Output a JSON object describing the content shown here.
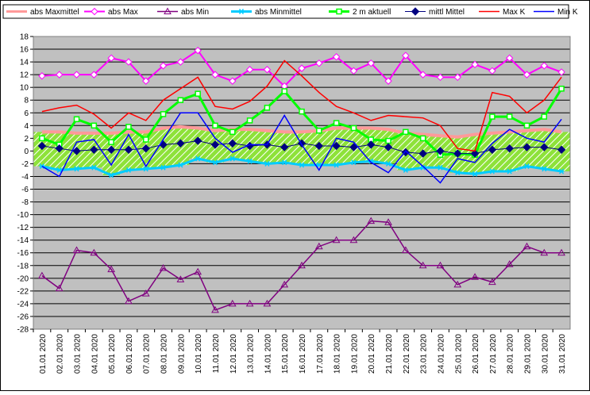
{
  "chart_data": {
    "type": "line",
    "title": "",
    "xlabel": "",
    "ylabel": "",
    "ylim": [
      -28,
      18
    ],
    "y_ticks": [
      18,
      16,
      14,
      12,
      10,
      8,
      6,
      4,
      2,
      0,
      -2,
      -4,
      -6,
      -8,
      -10,
      -12,
      -14,
      -16,
      -18,
      -20,
      -22,
      -24,
      -26,
      -28
    ],
    "grid": true,
    "legend_position": "top",
    "plot_background": "#c0c0c0",
    "categories": [
      "01.01 2020",
      "02.01 2020",
      "03.01 2020",
      "04.01 2020",
      "05.01 2020",
      "06.01 2020",
      "07.01 2020",
      "08.01 2020",
      "09.01 2020",
      "10.01 2020",
      "11.01 2020",
      "12.01 2020",
      "13.01 2020",
      "14.01 2020",
      "15.01 2020",
      "16.01 2020",
      "17.01 2020",
      "18.01 2020",
      "19.01 2020",
      "20.01 2020",
      "21.01 2020",
      "22.01 2020",
      "23.01 2020",
      "24.01 2020",
      "25.01 2020",
      "26.01 2020",
      "27.01 2020",
      "28.01 2020",
      "29.01 2020",
      "30.01 2020",
      "31.01 2020"
    ],
    "band": {
      "upper": "abs Maxmittel",
      "lower": "abs Minmittel",
      "fill": "#8ee23a",
      "hatch": "#ffffff"
    },
    "series": [
      {
        "name": "abs Maxmittel",
        "color": "#ff9999",
        "marker": "none",
        "width": 4,
        "values": [
          3.0,
          3.0,
          2.8,
          2.8,
          2.8,
          3.0,
          3.0,
          3.6,
          3.8,
          3.6,
          3.2,
          3.4,
          3.4,
          3.2,
          3.0,
          3.0,
          3.2,
          3.6,
          3.6,
          3.6,
          3.4,
          2.8,
          2.6,
          2.4,
          2.2,
          2.6,
          2.8,
          3.0,
          3.2,
          3.4,
          3.0
        ]
      },
      {
        "name": "abs Max",
        "color": "#ff00ff",
        "marker": "diamond-open",
        "width": 2,
        "values": [
          11.8,
          12.0,
          12.0,
          12.0,
          14.6,
          14.0,
          11.0,
          13.4,
          14.0,
          15.8,
          12.0,
          11.0,
          12.8,
          12.8,
          10.2,
          13.0,
          13.8,
          14.8,
          12.6,
          13.8,
          11.0,
          15.0,
          12.0,
          11.6,
          11.6,
          13.6,
          12.6,
          14.6,
          12.0,
          13.4,
          12.4
        ]
      },
      {
        "name": "abs Min",
        "color": "#800080",
        "marker": "triangle-open",
        "width": 1.5,
        "values": [
          -19.6,
          -21.6,
          -15.6,
          -16.0,
          -18.6,
          -23.6,
          -22.4,
          -18.4,
          -20.2,
          -19.0,
          -25.0,
          -24.0,
          -24.0,
          -24.0,
          -21.0,
          -18.0,
          -15.0,
          -14.0,
          -14.0,
          -11.0,
          -11.2,
          -15.6,
          -18.0,
          -18.0,
          -21.0,
          -19.8,
          -20.6,
          -17.8,
          -15.0,
          -16.0,
          -16.0
        ]
      },
      {
        "name": "abs Minmittel",
        "color": "#00ccff",
        "marker": "asterisk",
        "width": 3,
        "values": [
          -2.4,
          -3.0,
          -2.8,
          -2.6,
          -3.8,
          -3.0,
          -2.8,
          -2.6,
          -2.2,
          -1.2,
          -1.8,
          -1.2,
          -1.6,
          -2.0,
          -1.8,
          -2.2,
          -2.2,
          -2.2,
          -1.8,
          -1.6,
          -2.0,
          -3.0,
          -2.6,
          -2.6,
          -3.4,
          -3.6,
          -3.2,
          -3.2,
          -2.4,
          -2.8,
          -3.2
        ]
      },
      {
        "name": "2 m aktuell",
        "color": "#00ff00",
        "marker": "square-open",
        "width": 3,
        "values": [
          2.0,
          1.0,
          5.0,
          4.0,
          1.4,
          3.8,
          1.8,
          5.8,
          8.0,
          9.0,
          4.0,
          3.0,
          4.8,
          6.8,
          9.4,
          6.2,
          3.2,
          4.4,
          3.6,
          1.8,
          1.6,
          3.0,
          2.0,
          -0.6,
          -0.4,
          -0.6,
          5.4,
          5.4,
          4.0,
          5.4,
          9.8
        ]
      },
      {
        "name": "mittl Mittel",
        "color": "#000080",
        "marker": "diamond-filled",
        "width": 1,
        "values": [
          0.8,
          0.4,
          0.0,
          0.2,
          0.2,
          0.2,
          0.4,
          1.0,
          1.2,
          1.6,
          1.0,
          1.2,
          0.8,
          1.0,
          0.6,
          1.2,
          0.8,
          0.8,
          0.6,
          1.0,
          0.6,
          -0.2,
          -0.4,
          0.0,
          -0.4,
          -0.4,
          0.2,
          0.4,
          0.6,
          0.6,
          0.2
        ]
      },
      {
        "name": "Max K",
        "color": "#ff0000",
        "marker": "none",
        "width": 1.5,
        "values": [
          6.2,
          6.8,
          7.2,
          5.8,
          3.6,
          6.0,
          4.8,
          8.0,
          9.8,
          11.6,
          7.0,
          6.6,
          7.8,
          10.2,
          14.2,
          11.8,
          9.2,
          7.0,
          6.0,
          4.8,
          5.6,
          5.4,
          5.2,
          4.0,
          0.4,
          0.0,
          9.2,
          8.6,
          6.0,
          8.0,
          11.6
        ]
      },
      {
        "name": "Min K",
        "color": "#0000ff",
        "marker": "none",
        "width": 1.5,
        "values": [
          -2.4,
          -4.0,
          1.4,
          1.8,
          -2.2,
          2.6,
          -2.4,
          1.8,
          6.0,
          6.0,
          2.0,
          -0.2,
          1.0,
          1.0,
          5.6,
          1.0,
          -3.0,
          2.0,
          1.4,
          -1.8,
          -3.4,
          0.0,
          -2.4,
          -5.0,
          -1.2,
          -1.8,
          1.2,
          3.4,
          2.0,
          1.4,
          5.0
        ]
      }
    ]
  }
}
